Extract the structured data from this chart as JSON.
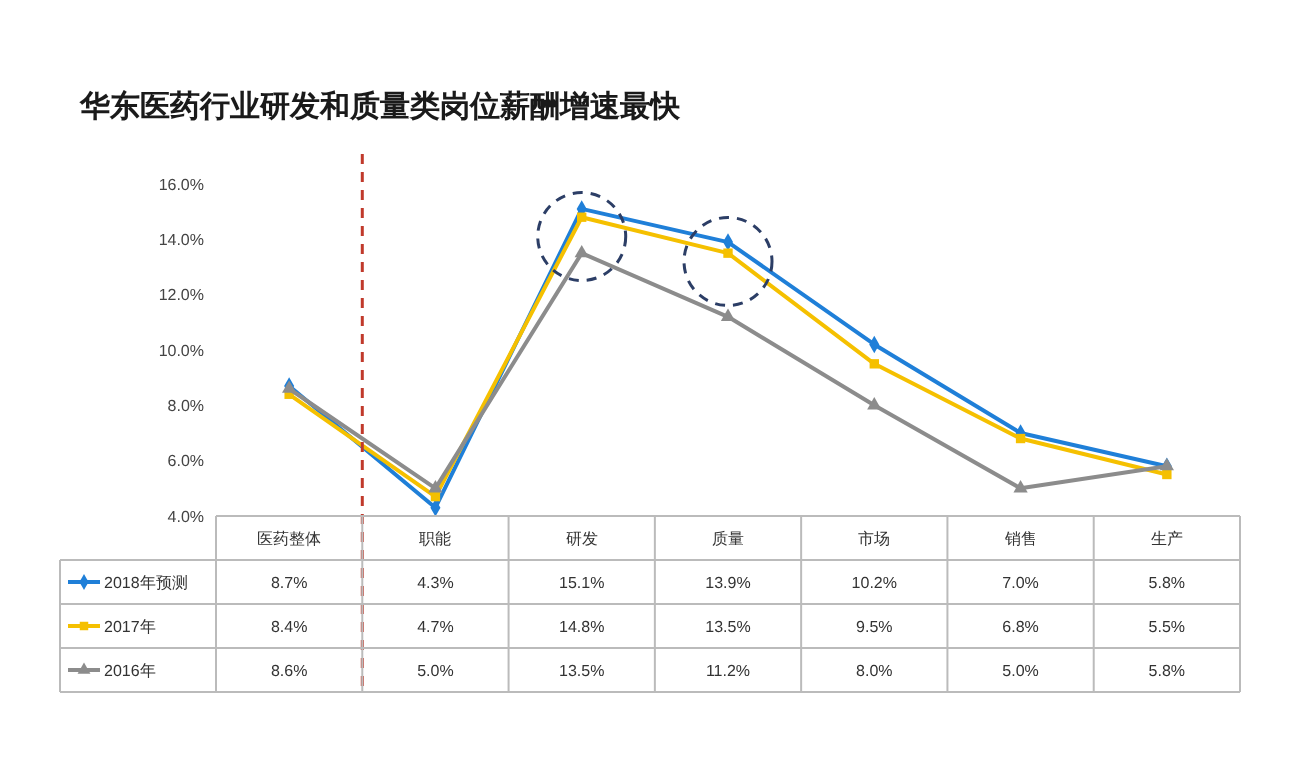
{
  "chart_data": {
    "type": "line",
    "title": "华东医药行业研发和质量类岗位薪酬增速最快",
    "categories": [
      "医药整体",
      "职能",
      "研发",
      "质量",
      "市场",
      "销售",
      "生产"
    ],
    "ylim": [
      4,
      16
    ],
    "yticks": [
      {
        "value": 4,
        "label": "4.0%"
      },
      {
        "value": 6,
        "label": "6.0%"
      },
      {
        "value": 8,
        "label": "8.0%"
      },
      {
        "value": 10,
        "label": "10.0%"
      },
      {
        "value": 12,
        "label": "12.0%"
      },
      {
        "value": 14,
        "label": "14.0%"
      },
      {
        "value": 16,
        "label": "16.0%"
      }
    ],
    "grid": false,
    "legend": "bottom left",
    "line_style": "solid",
    "series": [
      {
        "name": "2018年预测",
        "color": "#1f7fd8",
        "marker": "diamond",
        "values": [
          8.7,
          4.3,
          15.1,
          13.9,
          10.2,
          7.0,
          5.8
        ],
        "value_labels": [
          "8.7%",
          "4.3%",
          "15.1%",
          "13.9%",
          "10.2%",
          "7.0%",
          "5.8%"
        ]
      },
      {
        "name": "2017年",
        "color": "#f5c000",
        "marker": "square",
        "values": [
          8.4,
          4.7,
          14.8,
          13.5,
          9.5,
          6.8,
          5.5
        ],
        "value_labels": [
          "8.4%",
          "4.7%",
          "14.8%",
          "13.5%",
          "9.5%",
          "6.8%",
          "5.5%"
        ]
      },
      {
        "name": "2016年",
        "color": "#8c8c8c",
        "marker": "triangle",
        "values": [
          8.6,
          5.0,
          13.5,
          11.2,
          8.0,
          5.0,
          5.8
        ],
        "value_labels": [
          "8.6%",
          "5.0%",
          "13.5%",
          "11.2%",
          "8.0%",
          "5.0%",
          "5.8%"
        ]
      }
    ]
  }
}
